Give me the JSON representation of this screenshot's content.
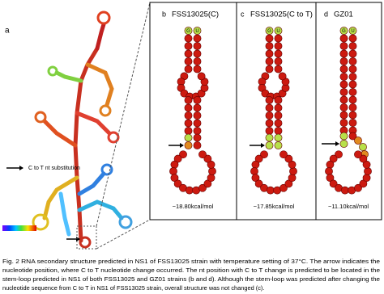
{
  "figure": {
    "panel_a": {
      "label": "a",
      "annotation": "C to T nt substitution"
    },
    "panels": [
      {
        "label": "b",
        "title": "FSS13025(C)",
        "energy": "−18.80kcal/mol",
        "top_pair": [
          "G",
          "U"
        ]
      },
      {
        "label": "c",
        "title": "FSS13025(C to T)",
        "energy": "−17.85kcal/mol",
        "top_pair": [
          "G",
          "U"
        ]
      },
      {
        "label": "d",
        "title": "GZ01",
        "energy": "−11.10kcal/mol",
        "top_pair": [
          "G",
          "U"
        ]
      }
    ],
    "caption": [
      "Fig. 2 RNA secondary structure predicted in NS1 of FSS13025 strain with temperature setting of 37°C. The arrow indicates the",
      "nucleotide position, where C to T nucleotide change occurred. The nt position with C to T change is predicted to be located in the",
      "stem-loop predicted in NS1 of both FSS13025 and GZ01 strains (b and d). Although the stem-loop was predicted after changing the",
      "nucleotide sequence from C to T in NS1 of FSS13025 strain, overall structure was  not changed (c)."
    ]
  }
}
